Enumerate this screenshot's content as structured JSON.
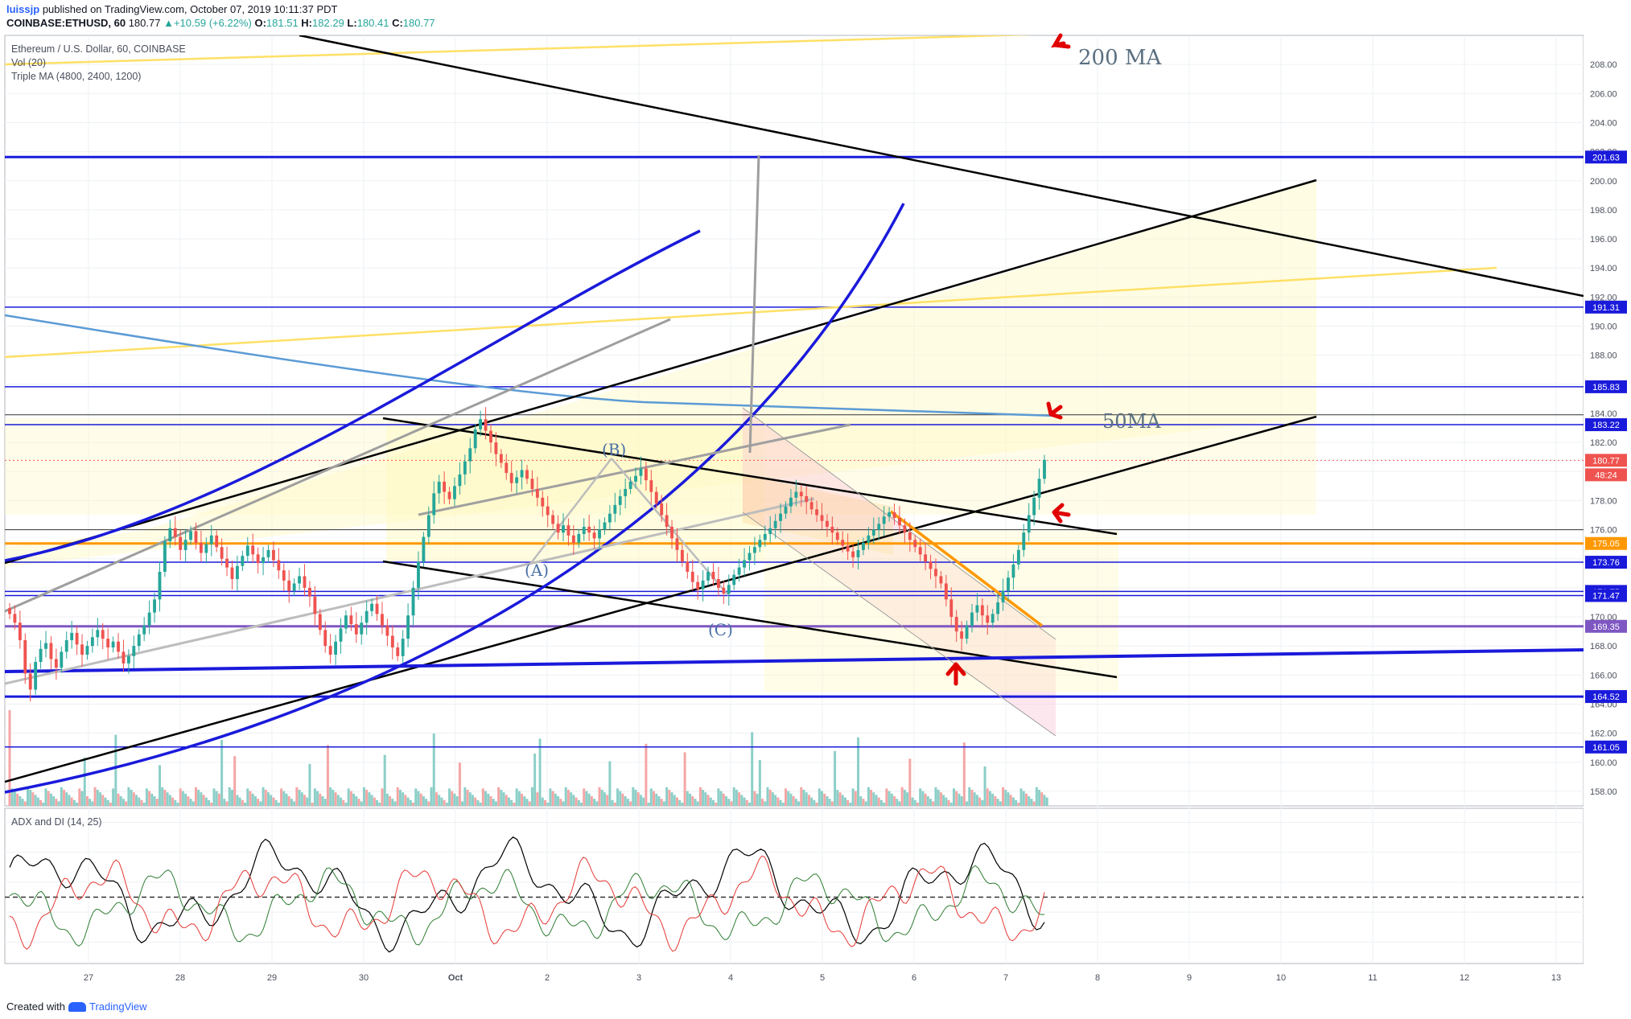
{
  "header": {
    "user": "luissjp",
    "published": "published on TradingView.com, October 07, 2019 10:11:37 PDT",
    "symbol": "COINBASE:ETHUSD, 60",
    "last": "180.77",
    "change": "+10.59 (+6.22%)",
    "open_label": "O:",
    "open": "181.51",
    "high_label": "H:",
    "high": "182.29",
    "low_label": "L:",
    "low": "180.41",
    "close_label": "C:",
    "close": "180.77"
  },
  "legend": {
    "title": "Ethereum / U.S. Dollar, 60, COINBASE",
    "vol": "Vol (20)",
    "triple_ma": "Triple MA (4800, 2400, 1200)",
    "adx": "ADX and DI (14, 25)"
  },
  "footer": {
    "created_with": "Created with",
    "brand": "TradingView"
  },
  "colors": {
    "up": "#26a69a",
    "down": "#ef5350",
    "level_blue": "#1a1adb",
    "level_orange": "#ff9800",
    "level_purple": "#7e57c2",
    "ma200": "#ffe066",
    "ma50": "#5b9bd5"
  },
  "chart_data": {
    "type": "candlestick",
    "title": "Ethereum / U.S. Dollar, 60, COINBASE",
    "ylim": [
      157,
      210
    ],
    "x_tick_labels": [
      "27",
      "28",
      "29",
      "30",
      "Oct",
      "2",
      "3",
      "4",
      "5",
      "6",
      "7",
      "8",
      "9",
      "10",
      "11",
      "12",
      "13"
    ],
    "y_tick_labels": [
      "158.00",
      "160.00",
      "162.00",
      "164.00",
      "166.00",
      "168.00",
      "170.00",
      "172.00",
      "174.00",
      "176.00",
      "178.00",
      "180.00",
      "182.00",
      "184.00",
      "186.00",
      "188.00",
      "190.00",
      "192.00",
      "194.00",
      "196.00",
      "198.00",
      "200.00",
      "202.00",
      "204.00",
      "206.00",
      "208.00"
    ],
    "price_levels": [
      {
        "value": 201.63,
        "label": "201.63",
        "color": "#1a1adb"
      },
      {
        "value": 191.31,
        "label": "191.31",
        "color": "#1a1adb"
      },
      {
        "value": 185.83,
        "label": "185.83",
        "color": "#1a1adb"
      },
      {
        "value": 183.22,
        "label": "183.22",
        "color": "#1a1adb"
      },
      {
        "value": 180.77,
        "label": "180.77",
        "color": "#ef5350"
      },
      {
        "value": 175.05,
        "label": "175.05",
        "color": "#ff9800"
      },
      {
        "value": 173.76,
        "label": "173.76",
        "color": "#1a1adb"
      },
      {
        "value": 171.75,
        "label": "171.75",
        "color": "#1a1adb"
      },
      {
        "value": 171.47,
        "label": "171.47",
        "color": "#1a1adb"
      },
      {
        "value": 169.35,
        "label": "169.35",
        "color": "#7e57c2"
      },
      {
        "value": 164.52,
        "label": "164.52",
        "color": "#1a1adb"
      },
      {
        "value": 161.05,
        "label": "161.05",
        "color": "#1a1adb"
      }
    ],
    "countdown_label": "48:24",
    "annotations": [
      "200 MA",
      "50MA",
      "(A)",
      "(B)",
      "(C)"
    ],
    "candles_close": [
      170.2,
      169.6,
      168.4,
      166.1,
      165.0,
      166.9,
      167.8,
      168.2,
      167.1,
      166.5,
      167.6,
      168.4,
      168.9,
      168.1,
      167.4,
      168.0,
      168.6,
      169.1,
      168.5,
      167.9,
      168.3,
      167.6,
      166.8,
      167.3,
      168.0,
      168.8,
      169.4,
      170.3,
      171.2,
      173.1,
      175.2,
      176.1,
      175.5,
      174.6,
      175.3,
      175.9,
      175.1,
      174.4,
      175.0,
      175.6,
      174.8,
      174.0,
      173.4,
      172.6,
      173.5,
      174.2,
      174.9,
      174.3,
      173.7,
      174.1,
      174.6,
      173.9,
      173.2,
      172.5,
      171.8,
      172.3,
      172.8,
      172.0,
      171.4,
      170.2,
      169.1,
      168.0,
      167.4,
      168.3,
      169.2,
      170.1,
      169.5,
      168.8,
      169.6,
      170.4,
      170.9,
      170.2,
      169.4,
      168.7,
      167.9,
      167.3,
      168.5,
      170.1,
      172.0,
      173.8,
      175.5,
      177.0,
      178.5,
      179.3,
      178.6,
      178.1,
      179.0,
      179.8,
      180.7,
      181.6,
      182.9,
      183.6,
      182.8,
      182.0,
      181.2,
      180.6,
      179.9,
      179.2,
      179.6,
      180.1,
      179.5,
      178.8,
      178.2,
      177.6,
      177.0,
      176.4,
      175.8,
      176.3,
      175.6,
      175.1,
      175.7,
      176.2,
      175.8,
      175.4,
      176.0,
      176.5,
      177.1,
      177.7,
      178.3,
      178.8,
      179.3,
      179.7,
      180.2,
      179.4,
      178.6,
      177.8,
      177.0,
      176.2,
      175.4,
      174.6,
      173.8,
      173.1,
      172.4,
      171.9,
      172.5,
      173.1,
      172.6,
      172.0,
      171.6,
      172.2,
      172.9,
      173.4,
      173.9,
      174.4,
      174.8,
      175.3,
      175.7,
      176.1,
      176.6,
      177.1,
      177.6,
      178.2,
      178.6,
      178.3,
      177.9,
      177.4,
      177.0,
      176.6,
      176.2,
      175.8,
      175.3,
      174.9,
      174.5,
      174.1,
      174.6,
      175.1,
      175.6,
      176.0,
      176.4,
      176.9,
      177.2,
      176.8,
      176.3,
      175.8,
      175.3,
      174.8,
      174.3,
      173.8,
      173.3,
      172.8,
      172.3,
      171.2,
      170.0,
      169.0,
      168.5,
      169.4,
      170.3,
      170.8,
      170.1,
      169.6,
      170.2,
      171.0,
      171.8,
      172.7,
      173.6,
      174.6,
      175.8,
      177.0,
      178.2,
      179.5,
      180.8
    ]
  }
}
